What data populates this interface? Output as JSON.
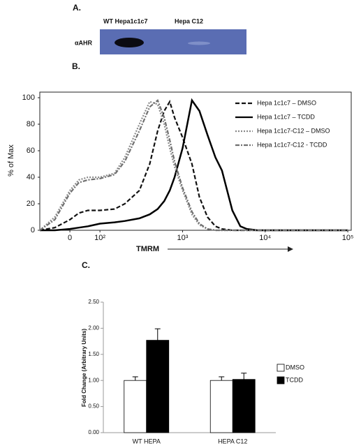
{
  "panel_a": {
    "label": "A.",
    "lanes": [
      "WT Hepa1c1c7",
      "Hepa C12"
    ],
    "row_label": "αAHR"
  },
  "chart_data": [
    {
      "type": "line",
      "label": "B.",
      "xlabel": "TMRM",
      "ylabel": "% of Max",
      "xscale": "biexponential",
      "x": [
        -100,
        -50,
        0,
        30,
        60,
        100,
        150,
        200,
        300,
        400,
        500,
        600,
        700,
        800,
        1000,
        1300,
        1600,
        2000,
        2500,
        3000,
        4000,
        5000,
        6000,
        8000,
        10000,
        20000,
        100000
      ],
      "series": [
        {
          "name": "Hepa 1c1c7 – DMSO",
          "color": "#111111",
          "dash": "dashed",
          "values": [
            0,
            2,
            8,
            13,
            15,
            15,
            16,
            20,
            30,
            50,
            75,
            90,
            97,
            85,
            70,
            50,
            25,
            10,
            3,
            1,
            0,
            0,
            0,
            0,
            0,
            0,
            0
          ]
        },
        {
          "name": "Hepa 1c1c7 – TCDD",
          "color": "#000000",
          "dash": "solid",
          "values": [
            0,
            0,
            1,
            2,
            3,
            5,
            6,
            7,
            9,
            12,
            16,
            22,
            30,
            40,
            62,
            98,
            90,
            72,
            55,
            45,
            15,
            3,
            1,
            0,
            0,
            0,
            0
          ]
        },
        {
          "name": "Hepa 1c1c7-C12 – DMSO",
          "color": "#8a8a8a",
          "dash": "dotted",
          "values": [
            0,
            10,
            30,
            38,
            40,
            40,
            43,
            55,
            80,
            97,
            95,
            80,
            62,
            48,
            30,
            12,
            4,
            1,
            0,
            0,
            0,
            0,
            0,
            0,
            0,
            0,
            0
          ]
        },
        {
          "name": "Hepa 1c1c7-C12 - TCDD",
          "color": "#707070",
          "dash": "dashdot",
          "values": [
            0,
            8,
            28,
            36,
            38,
            39,
            42,
            52,
            75,
            93,
            98,
            85,
            68,
            52,
            32,
            14,
            5,
            1,
            0,
            0,
            0,
            0,
            0,
            0,
            0,
            0,
            0
          ]
        }
      ],
      "xlim": [
        -100,
        110000
      ],
      "xticks": [
        0,
        {
          "value": 100,
          "label": "10²"
        },
        {
          "value": 1000,
          "label": "10³"
        },
        {
          "value": 10000,
          "label": "10⁴"
        },
        {
          "value": 100000,
          "label": "10⁵"
        }
      ],
      "ylim": [
        0,
        100
      ],
      "yticks": [
        0,
        20,
        40,
        60,
        80,
        100
      ],
      "legend": "upper right"
    },
    {
      "type": "bar",
      "label": "C.",
      "ylabel": "Fold Change (Arbitrary Units)",
      "categories": [
        "WT HEPA",
        "HEPA C12"
      ],
      "series": [
        {
          "name": "DMSO",
          "color": "#ffffff",
          "values": [
            1.0,
            1.0
          ],
          "errors": [
            0.07,
            0.07
          ]
        },
        {
          "name": "TCDD",
          "color": "#000000",
          "values": [
            1.77,
            1.02
          ],
          "errors": [
            0.22,
            0.12
          ]
        }
      ],
      "ylim": [
        0,
        2.5
      ],
      "yticks": [
        {
          "value": 0,
          "label": "0.00"
        },
        {
          "value": 0.5,
          "label": "0.50"
        },
        {
          "value": 1,
          "label": "1.00"
        },
        {
          "value": 1.5,
          "label": "1.50"
        },
        {
          "value": 2,
          "label": "2.00"
        },
        {
          "value": 2.5,
          "label": "2.50"
        }
      ],
      "legend": "right"
    }
  ]
}
